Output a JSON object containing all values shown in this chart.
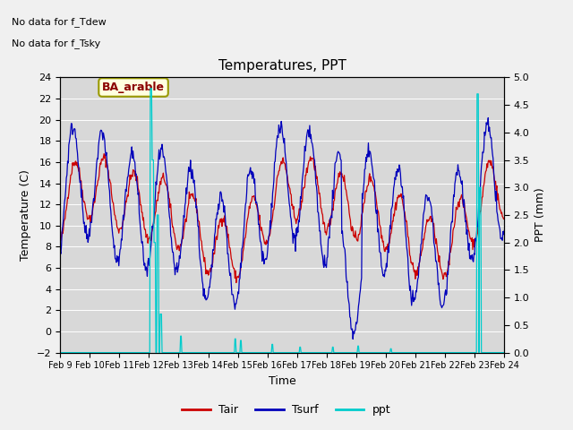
{
  "title": "Temperatures, PPT",
  "xlabel": "Time",
  "ylabel_left": "Temperature (C)",
  "ylabel_right": "PPT (mm)",
  "annotation_lines": [
    "No data for f_Tdew",
    "No data for f_Tsky"
  ],
  "site_label": "BA_arable",
  "ylim_left": [
    -2,
    24
  ],
  "ylim_right": [
    0.0,
    5.0
  ],
  "yticks_left": [
    -2,
    0,
    2,
    4,
    6,
    8,
    10,
    12,
    14,
    16,
    18,
    20,
    22,
    24
  ],
  "yticks_right": [
    0.0,
    0.5,
    1.0,
    1.5,
    2.0,
    2.5,
    3.0,
    3.5,
    4.0,
    4.5,
    5.0
  ],
  "xtick_labels": [
    "Feb 9",
    "Feb 10",
    "Feb 11",
    "Feb 12",
    "Feb 13",
    "Feb 14",
    "Feb 15",
    "Feb 16",
    "Feb 17",
    "Feb 18",
    "Feb 19",
    "Feb 20",
    "Feb 21",
    "Feb 22",
    "Feb 23",
    "Feb 24"
  ],
  "legend_entries": [
    "Tair",
    "Tsurf",
    "ppt"
  ],
  "legend_colors": [
    "#cc0000",
    "#0000bb",
    "#00cccc"
  ],
  "line_tair_color": "#cc0000",
  "line_tsurf_color": "#0000bb",
  "line_ppt_color": "#00cccc",
  "fig_bg": "#f0f0f0",
  "plot_bg": "#d8d8d8"
}
